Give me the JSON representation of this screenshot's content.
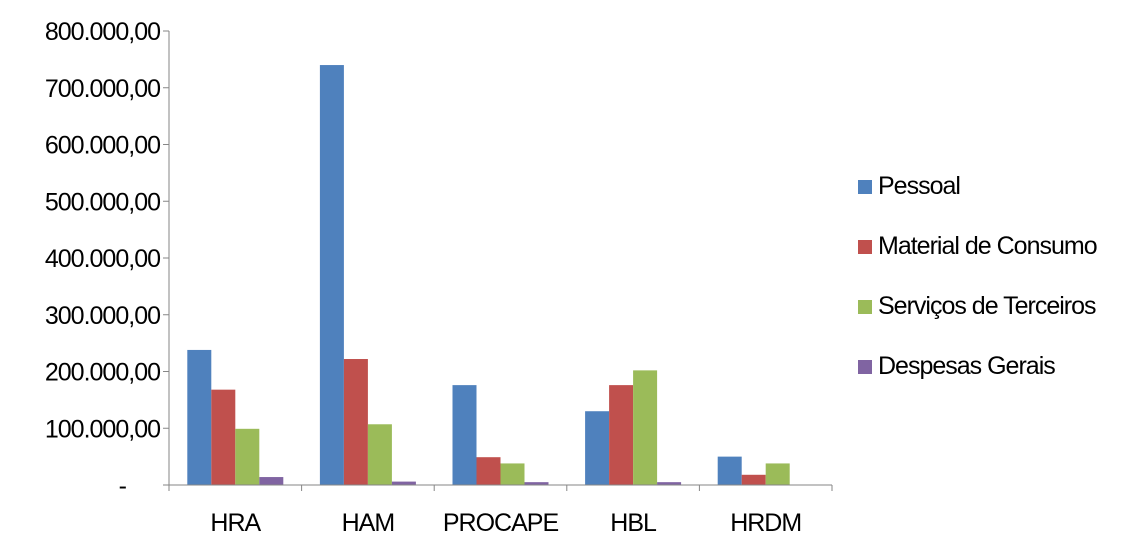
{
  "chart_data": {
    "type": "bar",
    "title": "",
    "xlabel": "",
    "ylabel": "",
    "categories": [
      "HRA",
      "HAM",
      "PROCAPE",
      "HBL",
      "HRDM"
    ],
    "series": [
      {
        "name": "Pessoal",
        "color": "#4F81BD",
        "values": [
          238000,
          740000,
          176000,
          130000,
          50000
        ]
      },
      {
        "name": "Material de Consumo",
        "color": "#C0504D",
        "values": [
          168000,
          222000,
          49000,
          176000,
          18000
        ]
      },
      {
        "name": "Serviços de Terceiros",
        "color": "#9BBB59",
        "values": [
          99000,
          107000,
          38000,
          202000,
          38000
        ]
      },
      {
        "name": "Despesas Gerais",
        "color": "#8064A2",
        "values": [
          14000,
          6000,
          5000,
          5000,
          0
        ]
      }
    ],
    "ylim": [
      0,
      800000
    ],
    "yticks": [
      0,
      100000,
      200000,
      300000,
      400000,
      500000,
      600000,
      700000,
      800000
    ],
    "ytick_labels": [
      "-",
      "100.000,00",
      "200.000,00",
      "300.000,00",
      "400.000,00",
      "500.000,00",
      "600.000,00",
      "700.000,00",
      "800.000,00"
    ],
    "grid": false,
    "legend_position": "right"
  }
}
